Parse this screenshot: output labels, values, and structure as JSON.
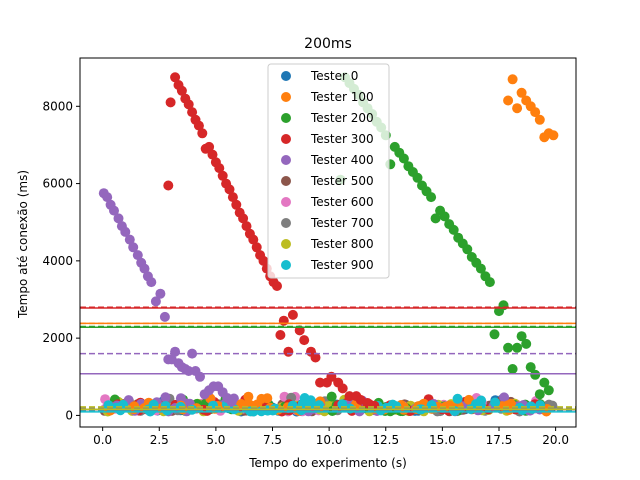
{
  "chart_data": {
    "type": "scatter",
    "title": "200ms",
    "xlabel": "Tempo do experimento (s)",
    "ylabel": "Tempo até conexão (ms)",
    "xlim": [
      -1.0,
      20.9
    ],
    "ylim": [
      -300,
      9250
    ],
    "xticks": [
      0,
      2.5,
      5,
      7.5,
      10,
      12.5,
      15,
      17.5,
      20
    ],
    "xtick_labels": [
      "0.0",
      "2.5",
      "5.0",
      "7.5",
      "10.0",
      "12.5",
      "15.0",
      "17.5",
      "20.0"
    ],
    "yticks": [
      0,
      2000,
      4000,
      6000,
      8000
    ],
    "ytick_labels": [
      "0",
      "2000",
      "4000",
      "6000",
      "8000"
    ],
    "grid": false,
    "legend_position": "top-center",
    "series": [
      {
        "name": "Tester 0",
        "color": "#1f77b4",
        "mean": 200,
        "median": 150
      },
      {
        "name": "Tester 100",
        "color": "#ff7f0e",
        "mean": 2380,
        "median": 2380
      },
      {
        "name": "Tester 200",
        "color": "#2ca02c",
        "mean": 2300,
        "median": 2280
      },
      {
        "name": "Tester 300",
        "color": "#d62728",
        "mean": 2800,
        "median": 2780
      },
      {
        "name": "Tester 400",
        "color": "#9467bd",
        "mean": 1600,
        "median": 1080
      },
      {
        "name": "Tester 500",
        "color": "#8c564b",
        "mean": 200,
        "median": 150
      },
      {
        "name": "Tester 600",
        "color": "#e377c2",
        "mean": 210,
        "median": 160
      },
      {
        "name": "Tester 700",
        "color": "#7f7f7f",
        "mean": 200,
        "median": 150
      },
      {
        "name": "Tester 800",
        "color": "#bcbd22",
        "mean": 220,
        "median": 160
      },
      {
        "name": "Tester 900",
        "color": "#17becf",
        "mean": 110,
        "median": 90
      }
    ],
    "highlight_points": [
      {
        "series": 3,
        "x": [
          2.9,
          3.0,
          3.2,
          3.35,
          3.5,
          3.65,
          3.8,
          3.95,
          4.1,
          4.25,
          4.4,
          4.55,
          4.7,
          4.85,
          5.0,
          5.15,
          5.3,
          5.45,
          5.6,
          5.75,
          5.9,
          6.05,
          6.2,
          6.35,
          6.5,
          6.65,
          6.8,
          6.95,
          7.1,
          7.25,
          7.4,
          7.55,
          7.7,
          7.85,
          8.0,
          8.2,
          8.4,
          8.7,
          8.9,
          9.2,
          9.4,
          9.6,
          9.9,
          10.1,
          10.4,
          10.6,
          10.9,
          11.2,
          11.4,
          11.7,
          12.0
        ],
        "y": [
          5950,
          8100,
          8750,
          8550,
          8400,
          8200,
          8050,
          7850,
          7650,
          7500,
          7300,
          6900,
          6950,
          6750,
          6550,
          6400,
          6200,
          6000,
          5850,
          5650,
          5450,
          5250,
          5100,
          4900,
          4700,
          4550,
          4350,
          4150,
          4000,
          3800,
          3600,
          3450,
          3350,
          2080,
          2450,
          1650,
          2600,
          2200,
          1950,
          1650,
          1500,
          850,
          850,
          1000,
          850,
          700,
          500,
          500,
          400,
          320,
          250
        ]
      },
      {
        "series": 4,
        "x": [
          0.05,
          0.2,
          0.35,
          0.5,
          0.7,
          0.85,
          1.0,
          1.2,
          1.35,
          1.55,
          1.7,
          1.85,
          2.0,
          2.15,
          2.35,
          2.55,
          2.75,
          2.9,
          3.05,
          3.2,
          3.35,
          3.5,
          3.65,
          3.8,
          3.95,
          4.1,
          4.3,
          4.5,
          4.7,
          4.9,
          5.1,
          5.3,
          5.5,
          5.7
        ],
        "y": [
          5750,
          5650,
          5450,
          5300,
          5100,
          4900,
          4750,
          4550,
          4350,
          4150,
          3950,
          3800,
          3600,
          3450,
          2950,
          3150,
          2550,
          1450,
          1450,
          1650,
          1350,
          1250,
          1200,
          1150,
          1600,
          1150,
          1000,
          550,
          650,
          750,
          750,
          600,
          450,
          350
        ]
      },
      {
        "series": 2,
        "x": [
          10.5,
          10.7,
          10.9,
          11.1,
          11.3,
          11.5,
          11.7,
          11.9,
          12.1,
          12.3,
          12.5,
          12.7,
          12.9,
          13.1,
          13.3,
          13.5,
          13.7,
          13.9,
          14.1,
          14.3,
          14.5,
          14.7,
          14.9,
          15.1,
          15.3,
          15.5,
          15.7,
          15.9,
          16.1,
          16.3,
          16.5,
          16.7,
          16.9,
          17.1,
          17.3,
          17.5,
          17.7,
          17.9,
          18.1,
          18.3,
          18.5,
          18.7,
          18.9,
          19.1,
          19.3,
          19.5,
          19.7
        ],
        "y": [
          6100,
          8750,
          8600,
          8450,
          8300,
          8100,
          7950,
          7800,
          7600,
          7450,
          7250,
          6500,
          6950,
          6800,
          6650,
          6450,
          6300,
          6150,
          5950,
          5800,
          5650,
          5100,
          5300,
          5150,
          4950,
          4800,
          4600,
          4450,
          4300,
          4100,
          3950,
          3800,
          3600,
          3450,
          2100,
          2700,
          2850,
          1750,
          1200,
          1750,
          2050,
          1850,
          1250,
          1050,
          550,
          850,
          650
        ]
      },
      {
        "series": 1,
        "x": [
          17.9,
          18.1,
          18.3,
          18.5,
          18.7,
          18.9,
          19.1,
          19.3,
          19.5,
          19.7,
          19.9
        ],
        "y": [
          8150,
          8700,
          7950,
          8350,
          8150,
          8000,
          7850,
          7650,
          7200,
          7300,
          7250
        ]
      }
    ],
    "baseline_band": {
      "x_range": [
        0,
        19.9
      ],
      "y_range": [
        80,
        520
      ],
      "note": "dense cluster of all testers near 100-300 ms"
    }
  }
}
